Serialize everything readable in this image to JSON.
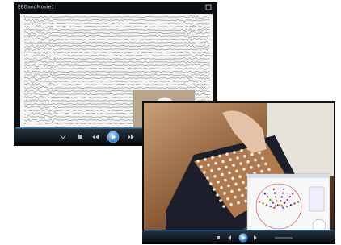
{
  "windows": [
    {
      "title": "EEGandMovie1"
    }
  ]
}
